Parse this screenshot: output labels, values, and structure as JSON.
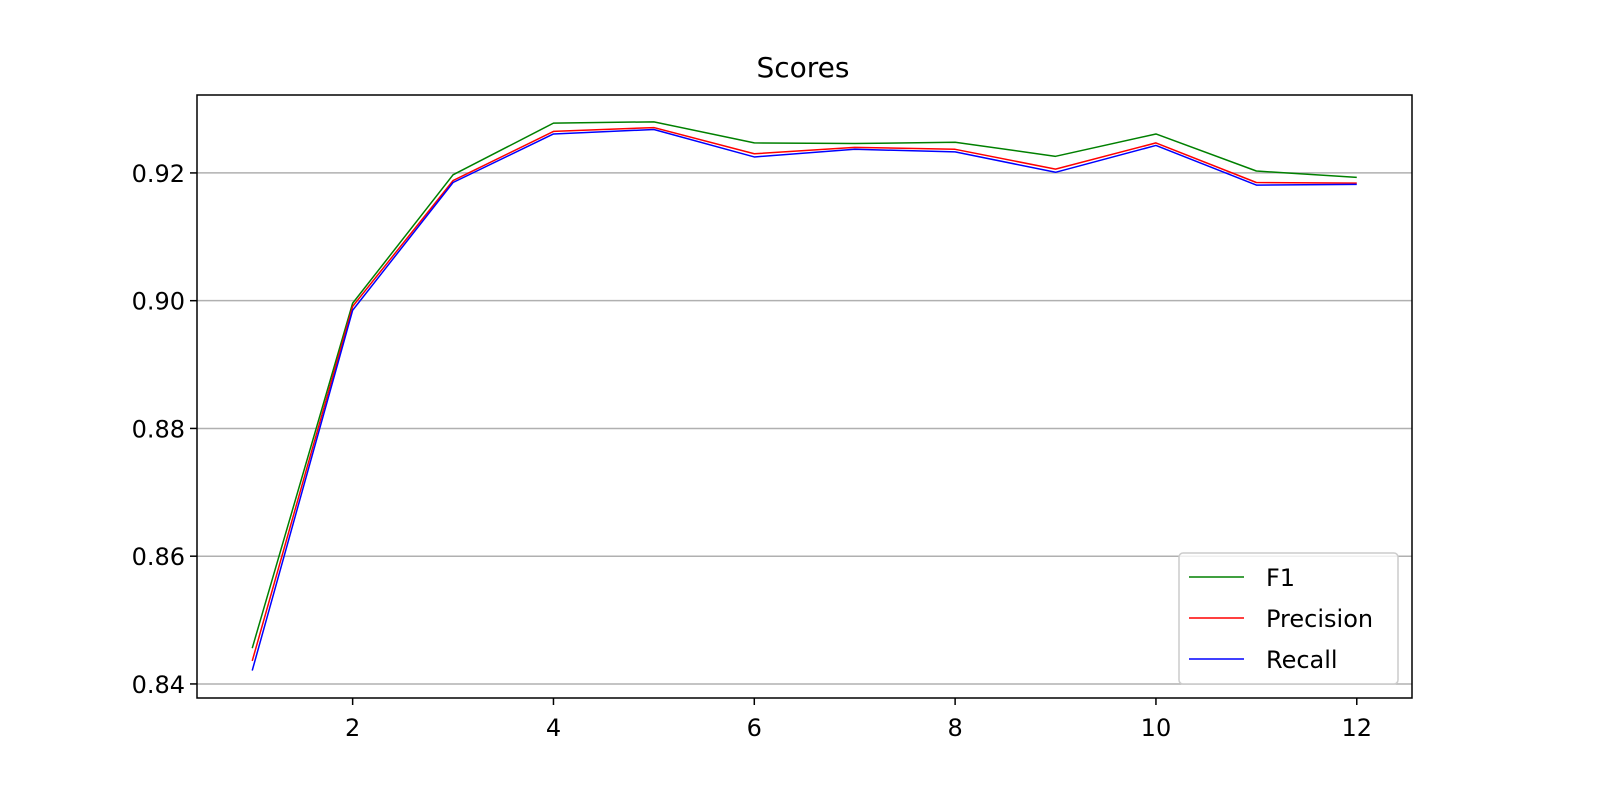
{
  "chart_data": {
    "type": "line",
    "title": "Scores",
    "xlabel": "",
    "ylabel": "",
    "x": [
      1,
      2,
      3,
      4,
      5,
      6,
      7,
      8,
      9,
      10,
      11,
      12
    ],
    "xlim": [
      0.45,
      12.55
    ],
    "ylim": [
      0.8378,
      0.9322
    ],
    "xticks": [
      2,
      4,
      6,
      8,
      10,
      12
    ],
    "yticks": [
      0.84,
      0.86,
      0.88,
      0.9,
      0.92
    ],
    "ytick_labels": [
      "0.84",
      "0.86",
      "0.88",
      "0.90",
      "0.92"
    ],
    "grid": "horizontal",
    "legend_position": "lower-right",
    "series": [
      {
        "name": "F1",
        "color": "#008000",
        "values": [
          0.8456,
          0.8996,
          0.9197,
          0.9278,
          0.928,
          0.9247,
          0.9246,
          0.9248,
          0.9226,
          0.9261,
          0.9203,
          0.9193
        ]
      },
      {
        "name": "Precision",
        "color": "#ff0000",
        "values": [
          0.8436,
          0.8991,
          0.9188,
          0.9265,
          0.9271,
          0.923,
          0.924,
          0.9237,
          0.9206,
          0.9247,
          0.9185,
          0.9184
        ]
      },
      {
        "name": "Recall",
        "color": "#0000ff",
        "values": [
          0.8421,
          0.8985,
          0.9185,
          0.9261,
          0.9268,
          0.9225,
          0.9237,
          0.9233,
          0.9201,
          0.9243,
          0.9181,
          0.9182
        ]
      }
    ]
  }
}
